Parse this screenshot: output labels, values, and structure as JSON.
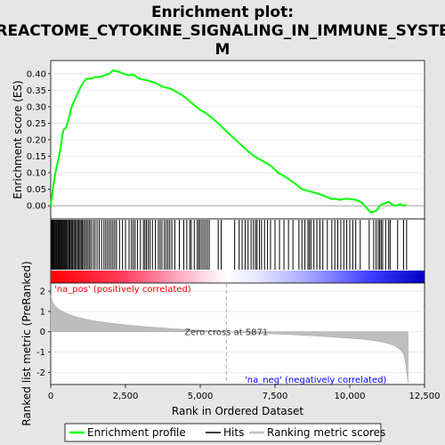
{
  "chart_data": {
    "type": "line",
    "title_line1": "Enrichment plot:",
    "title_line2": "REACTOME_CYTOKINE_SIGNALING_IN_IMMUNE_SYSTE",
    "title_line3": "M",
    "top_panel": {
      "ylabel": "Enrichment score (ES)",
      "ylim": [
        -0.04,
        0.44
      ],
      "yticks": [
        "0.00",
        "0.05",
        "0.10",
        "0.15",
        "0.20",
        "0.25",
        "0.30",
        "0.35",
        "0.40"
      ],
      "ytick_values": [
        0,
        0.05,
        0.1,
        0.15,
        0.2,
        0.25,
        0.3,
        0.35,
        0.4
      ],
      "series": [
        {
          "name": "Enrichment profile",
          "color": "#00ff00",
          "x": [
            0,
            60,
            120,
            180,
            250,
            320,
            380,
            430,
            500,
            560,
            620,
            700,
            800,
            900,
            1000,
            1100,
            1200,
            1350,
            1500,
            1650,
            1800,
            1950,
            2100,
            2200,
            2300,
            2450,
            2600,
            2750,
            2850,
            2950,
            3100,
            3250,
            3400,
            3550,
            3700,
            3850,
            4000,
            4200,
            4400,
            4600,
            4800,
            5000,
            5200,
            5400,
            5600,
            5800,
            6000,
            6200,
            6400,
            6600,
            6800,
            7000,
            7200,
            7400,
            7600,
            7800,
            8000,
            8200,
            8400,
            8600,
            8800,
            9000,
            9200,
            9400,
            9500,
            9650,
            9800,
            9900,
            10000,
            10200,
            10400,
            10600,
            10700,
            10800,
            10900,
            11000,
            11100,
            11200,
            11300,
            11400,
            11500,
            11600,
            11700,
            11800,
            11900
          ],
          "y": [
            0.0,
            0.04,
            0.08,
            0.11,
            0.14,
            0.17,
            0.21,
            0.23,
            0.235,
            0.25,
            0.27,
            0.3,
            0.32,
            0.34,
            0.36,
            0.375,
            0.385,
            0.385,
            0.39,
            0.39,
            0.395,
            0.4,
            0.41,
            0.408,
            0.405,
            0.4,
            0.395,
            0.398,
            0.392,
            0.385,
            0.382,
            0.38,
            0.375,
            0.37,
            0.362,
            0.358,
            0.355,
            0.345,
            0.335,
            0.32,
            0.305,
            0.29,
            0.28,
            0.265,
            0.25,
            0.232,
            0.215,
            0.198,
            0.182,
            0.165,
            0.15,
            0.14,
            0.13,
            0.118,
            0.1,
            0.09,
            0.078,
            0.065,
            0.05,
            0.045,
            0.04,
            0.035,
            0.028,
            0.02,
            0.022,
            0.018,
            0.02,
            0.022,
            0.02,
            0.018,
            0.01,
            -0.01,
            -0.02,
            -0.018,
            -0.015,
            0.0,
            0.005,
            0.008,
            0.012,
            0.005,
            0.0,
            0.002,
            0.005,
            0.0,
            0.003
          ]
        }
      ]
    },
    "hits_panel": {
      "legend_name": "Hits",
      "hit_positions": [
        30,
        55,
        80,
        105,
        130,
        160,
        190,
        215,
        245,
        270,
        300,
        330,
        360,
        390,
        420,
        450,
        480,
        510,
        540,
        570,
        610,
        640,
        680,
        710,
        740,
        780,
        820,
        860,
        900,
        940,
        980,
        1020,
        1060,
        1100,
        1150,
        1200,
        1250,
        1300,
        1350,
        1420,
        1480,
        1550,
        1620,
        1700,
        1780,
        1840,
        1900,
        1960,
        2020,
        2080,
        2140,
        2200,
        2300,
        2400,
        2500,
        2620,
        2700,
        2760,
        2820,
        2900,
        3000,
        3100,
        3150,
        3200,
        3260,
        3320,
        3400,
        3500,
        3600,
        3660,
        3720,
        3800,
        3860,
        3920,
        3980,
        4050,
        4150,
        4300,
        4450,
        4550,
        4650,
        4700,
        4800,
        4900,
        4950,
        5000,
        5060,
        5120,
        5180,
        5240,
        5300,
        5600,
        5700,
        6150,
        6300,
        6400,
        6500,
        6600,
        6700,
        6780,
        6850,
        6900,
        6980,
        7050,
        7150,
        7250,
        7350,
        7500,
        7650,
        7800,
        7950,
        8100,
        8300,
        8400,
        8500,
        8600,
        8650,
        8700,
        8800,
        8900,
        9000,
        9100,
        9250,
        9400,
        9500,
        9600,
        9700,
        9800,
        9900,
        10000,
        10100,
        10200,
        10350,
        10650,
        10800,
        10880,
        10950,
        11000,
        11050,
        11100,
        11200,
        11300,
        11350,
        11600,
        11800,
        11900
      ],
      "ranked_bar_label_pos": "'na_pos' (positively correlated)",
      "ranked_bar_label_neg": "'na_neg' (negatively correlated)"
    },
    "bottom_panel": {
      "ylabel": "Ranked list metric (PreRanked)",
      "xlabel": "Rank in Ordered Dataset",
      "ylim": [
        -2.6,
        2.4
      ],
      "yticks": [
        "-2",
        "-1",
        "0",
        "1",
        "2"
      ],
      "ytick_values": [
        -2,
        -1,
        0,
        1,
        2
      ],
      "xlim": [
        0,
        12500
      ],
      "xticks": [
        "0",
        "2,500",
        "5,000",
        "7,500",
        "10,000",
        "12,500"
      ],
      "xtick_values": [
        0,
        2500,
        5000,
        7500,
        10000,
        12500
      ],
      "zero_cross_label": "Zero cross at 5871",
      "zero_cross": 5871,
      "series": [
        {
          "name": "Ranking metric scores",
          "color": "#bebebe",
          "x": [
            0,
            50,
            100,
            200,
            300,
            500,
            800,
            1200,
            1600,
            2000,
            2500,
            3000,
            3500,
            4000,
            4500,
            5000,
            5500,
            5871,
            6500,
            7000,
            7500,
            8000,
            8500,
            9000,
            9500,
            10000,
            10500,
            11000,
            11300,
            11500,
            11700,
            11800,
            11850,
            11900,
            11950
          ],
          "y": [
            1.8,
            1.5,
            1.35,
            1.2,
            1.08,
            0.92,
            0.75,
            0.6,
            0.5,
            0.42,
            0.34,
            0.27,
            0.21,
            0.16,
            0.11,
            0.07,
            0.03,
            0.0,
            -0.05,
            -0.08,
            -0.11,
            -0.14,
            -0.18,
            -0.22,
            -0.27,
            -0.32,
            -0.38,
            -0.48,
            -0.58,
            -0.7,
            -0.9,
            -1.1,
            -1.4,
            -1.9,
            -2.5
          ]
        }
      ]
    },
    "legend": [
      "Enrichment profile",
      "Hits",
      "Ranking metric scores"
    ],
    "colors": {
      "profile": "#00ff00",
      "hits": "#000000",
      "metric": "#bebebe",
      "pos_label": "#ff0000",
      "neg_label": "#0000ff"
    }
  }
}
